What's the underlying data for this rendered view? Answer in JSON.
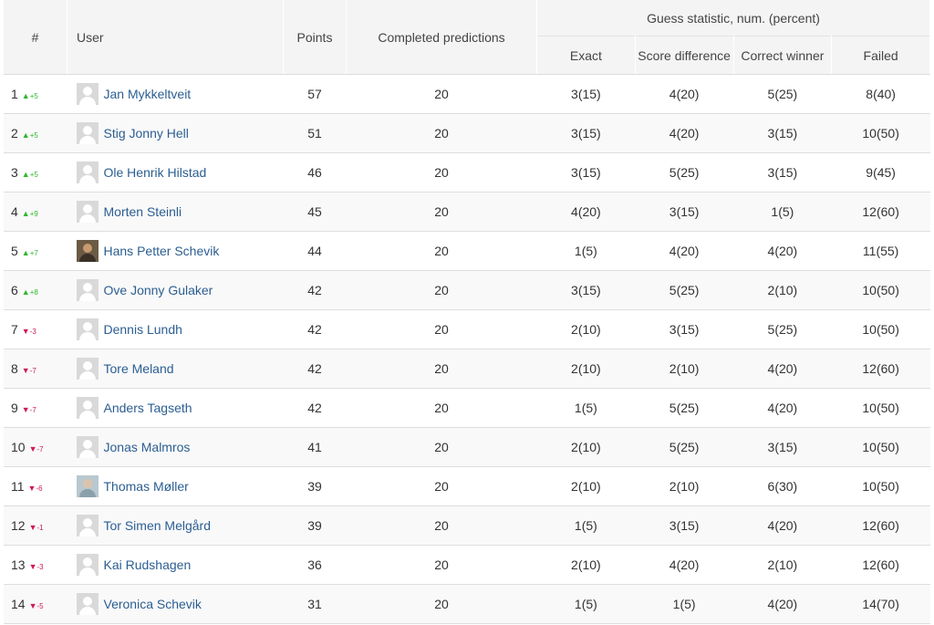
{
  "headers": {
    "rank": "#",
    "user": "User",
    "points": "Points",
    "completed": "Completed predictions",
    "guess_group": "Guess statistic, num. (percent)",
    "exact": "Exact",
    "score_difference": "Score difference",
    "correct_winner": "Correct winner",
    "failed": "Failed"
  },
  "colors": {
    "up": "#2db82d",
    "down": "#d0185a",
    "link": "#2b5e92"
  },
  "rows": [
    {
      "rank": "1",
      "dir": "up",
      "delta": "+5",
      "avatar": "default-avatar-icon",
      "user": "Jan Mykkeltveit",
      "points": "57",
      "completed": "20",
      "exact": "3(15)",
      "score_difference": "4(20)",
      "correct_winner": "5(25)",
      "failed": "8(40)"
    },
    {
      "rank": "2",
      "dir": "up",
      "delta": "+5",
      "avatar": "default-avatar-icon",
      "user": "Stig Jonny Hell",
      "points": "51",
      "completed": "20",
      "exact": "3(15)",
      "score_difference": "4(20)",
      "correct_winner": "3(15)",
      "failed": "10(50)"
    },
    {
      "rank": "3",
      "dir": "up",
      "delta": "+5",
      "avatar": "default-avatar-icon",
      "user": "Ole Henrik Hilstad",
      "points": "46",
      "completed": "20",
      "exact": "3(15)",
      "score_difference": "5(25)",
      "correct_winner": "3(15)",
      "failed": "9(45)"
    },
    {
      "rank": "4",
      "dir": "up",
      "delta": "+9",
      "avatar": "default-avatar-icon",
      "user": "Morten Steinli",
      "points": "45",
      "completed": "20",
      "exact": "4(20)",
      "score_difference": "3(15)",
      "correct_winner": "1(5)",
      "failed": "12(60)"
    },
    {
      "rank": "5",
      "dir": "up",
      "delta": "+7",
      "avatar": "photo-avatar-icon",
      "user": "Hans Petter Schevik",
      "points": "44",
      "completed": "20",
      "exact": "1(5)",
      "score_difference": "4(20)",
      "correct_winner": "4(20)",
      "failed": "11(55)"
    },
    {
      "rank": "6",
      "dir": "up",
      "delta": "+8",
      "avatar": "default-avatar-icon",
      "user": "Ove Jonny Gulaker",
      "points": "42",
      "completed": "20",
      "exact": "3(15)",
      "score_difference": "5(25)",
      "correct_winner": "2(10)",
      "failed": "10(50)"
    },
    {
      "rank": "7",
      "dir": "down",
      "delta": "-3",
      "avatar": "default-avatar-icon",
      "user": "Dennis Lundh",
      "points": "42",
      "completed": "20",
      "exact": "2(10)",
      "score_difference": "3(15)",
      "correct_winner": "5(25)",
      "failed": "10(50)"
    },
    {
      "rank": "8",
      "dir": "down",
      "delta": "-7",
      "avatar": "default-avatar-icon",
      "user": "Tore Meland",
      "points": "42",
      "completed": "20",
      "exact": "2(10)",
      "score_difference": "2(10)",
      "correct_winner": "4(20)",
      "failed": "12(60)"
    },
    {
      "rank": "9",
      "dir": "down",
      "delta": "-7",
      "avatar": "default-avatar-icon",
      "user": "Anders Tagseth",
      "points": "42",
      "completed": "20",
      "exact": "1(5)",
      "score_difference": "5(25)",
      "correct_winner": "4(20)",
      "failed": "10(50)"
    },
    {
      "rank": "10",
      "dir": "down",
      "delta": "-7",
      "avatar": "default-avatar-icon",
      "user": "Jonas Malmros",
      "points": "41",
      "completed": "20",
      "exact": "2(10)",
      "score_difference": "5(25)",
      "correct_winner": "3(15)",
      "failed": "10(50)"
    },
    {
      "rank": "11",
      "dir": "down",
      "delta": "-6",
      "avatar": "photo-avatar-icon",
      "user": "Thomas Møller",
      "points": "39",
      "completed": "20",
      "exact": "2(10)",
      "score_difference": "2(10)",
      "correct_winner": "6(30)",
      "failed": "10(50)"
    },
    {
      "rank": "12",
      "dir": "down",
      "delta": "-1",
      "avatar": "default-avatar-icon",
      "user": "Tor Simen Melgård",
      "points": "39",
      "completed": "20",
      "exact": "1(5)",
      "score_difference": "3(15)",
      "correct_winner": "4(20)",
      "failed": "12(60)"
    },
    {
      "rank": "13",
      "dir": "down",
      "delta": "-3",
      "avatar": "default-avatar-icon",
      "user": "Kai Rudshagen",
      "points": "36",
      "completed": "20",
      "exact": "2(10)",
      "score_difference": "4(20)",
      "correct_winner": "2(10)",
      "failed": "12(60)"
    },
    {
      "rank": "14",
      "dir": "down",
      "delta": "-5",
      "avatar": "default-avatar-icon",
      "user": "Veronica Schevik",
      "points": "31",
      "completed": "20",
      "exact": "1(5)",
      "score_difference": "1(5)",
      "correct_winner": "4(20)",
      "failed": "14(70)"
    }
  ]
}
